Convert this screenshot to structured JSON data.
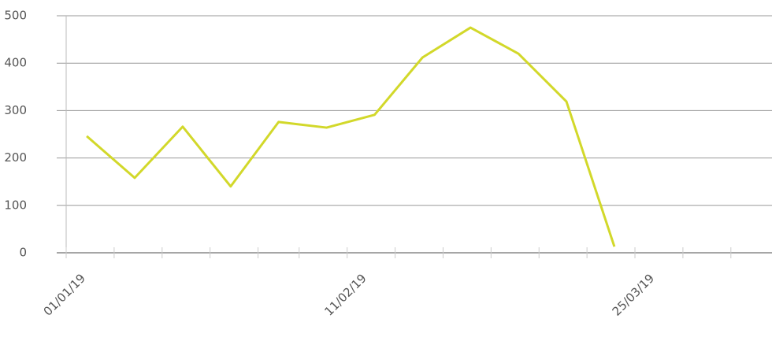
{
  "chart_data": {
    "type": "line",
    "x": [
      "2019-01-04",
      "2019-01-11",
      "2019-01-18",
      "2019-01-25",
      "2019-02-01",
      "2019-02-08",
      "2019-02-15",
      "2019-02-22",
      "2019-03-01",
      "2019-03-08",
      "2019-03-15",
      "2019-03-22"
    ],
    "series": [
      {
        "color": "#d2d82a",
        "values": [
          246,
          158,
          266,
          140,
          276,
          264,
          291,
          412,
          475,
          420,
          319,
          13
        ]
      }
    ],
    "xlim": [
      "2019-01-01",
      "2019-04-14"
    ],
    "xticks": [
      {
        "value": "2019-01-01",
        "label": "01/01/19"
      },
      {
        "value": "2019-02-11",
        "label": "11/02/19"
      },
      {
        "value": "2019-03-25",
        "label": "25/03/19"
      }
    ],
    "minor_xticks": [
      "2019-01-08",
      "2019-01-15",
      "2019-01-22",
      "2019-01-29",
      "2019-02-04",
      "2019-02-18",
      "2019-02-25",
      "2019-03-04",
      "2019-03-11",
      "2019-03-18",
      "2019-04-01",
      "2019-04-08"
    ],
    "ylim": [
      0,
      500
    ],
    "yticks": [
      0,
      100,
      200,
      300,
      400,
      500
    ],
    "grid": true
  }
}
